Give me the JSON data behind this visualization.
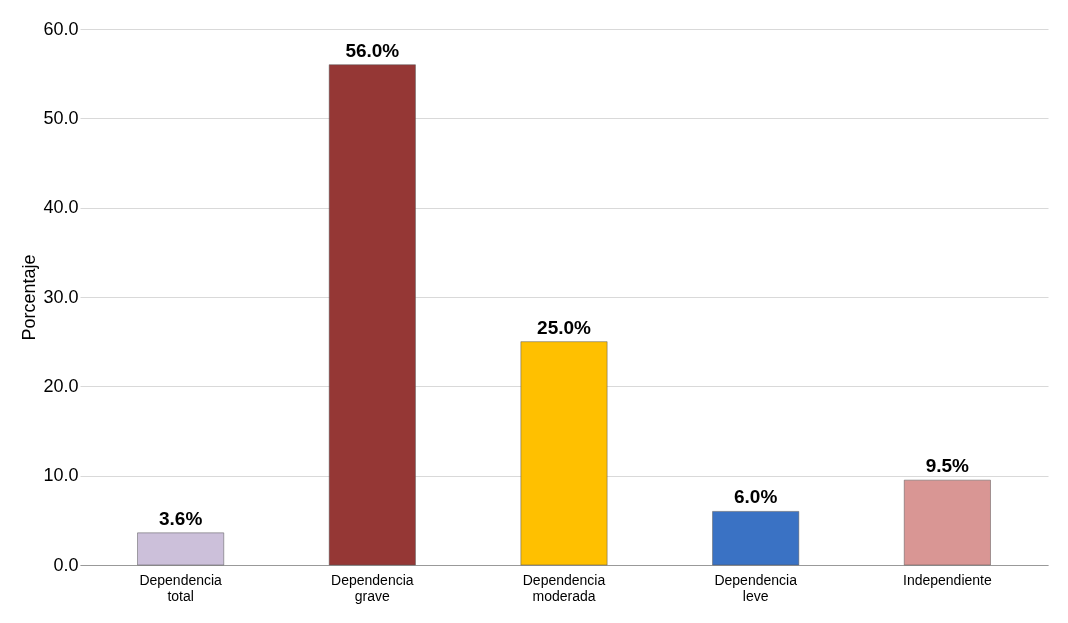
{
  "chart_data": {
    "type": "bar",
    "ylabel": "Porcentaje",
    "categories": [
      "Dependencia total",
      "Dependencia grave",
      "Dependencia moderada",
      "Dependencia leve",
      "Independiente"
    ],
    "values": [
      3.6,
      56.0,
      25.0,
      6.0,
      9.5
    ],
    "colors": [
      "#ccc0da",
      "#953735",
      "#ffc000",
      "#3a72c4",
      "#d99694"
    ],
    "value_labels": [
      "3.6%",
      "56.0%",
      "25.0%",
      "6.0%",
      "9.5%"
    ],
    "ylim": [
      0,
      60
    ],
    "yticks": [
      {
        "value": 0,
        "label": "0.0"
      },
      {
        "value": 10,
        "label": "10.0"
      },
      {
        "value": 20,
        "label": "20.0"
      },
      {
        "value": 30,
        "label": "30.0"
      },
      {
        "value": 40,
        "label": "40.0"
      },
      {
        "value": 50,
        "label": "50.0"
      },
      {
        "value": 60,
        "label": "60.0"
      }
    ],
    "grid": "y"
  }
}
